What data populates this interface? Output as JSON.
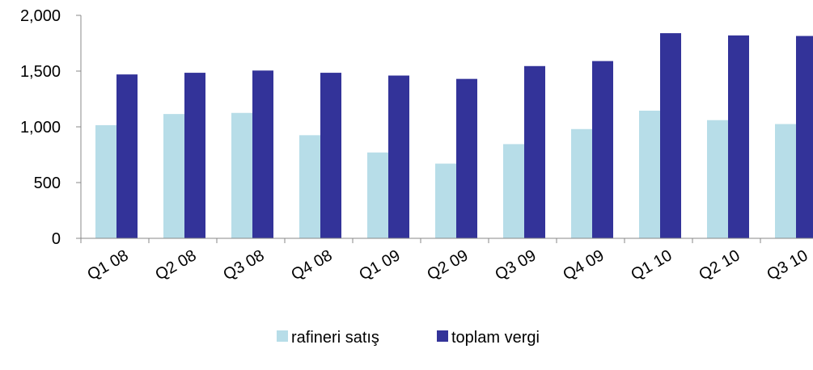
{
  "chart_data": {
    "type": "bar",
    "title": "",
    "xlabel": "",
    "ylabel": "",
    "categories": [
      "Q1 08",
      "Q2 08",
      "Q3 08",
      "Q4 08",
      "Q1 09",
      "Q2 09",
      "Q3 09",
      "Q4 09",
      "Q1 10",
      "Q2 10",
      "Q3 10"
    ],
    "ylim": [
      0,
      2000
    ],
    "yticks": [
      0,
      500,
      1000,
      1500,
      2000
    ],
    "ytick_labels": [
      "0",
      "500",
      "1,000",
      "1,500",
      "2,000"
    ],
    "grid": false,
    "legend_position": "bottom",
    "series": [
      {
        "name": "rafineri satış",
        "color": "#b7dde8",
        "values": [
          1015,
          1115,
          1125,
          925,
          770,
          670,
          845,
          980,
          1145,
          1060,
          1025
        ]
      },
      {
        "name": "toplam vergi",
        "color": "#333399",
        "values": [
          1470,
          1485,
          1505,
          1485,
          1460,
          1430,
          1545,
          1590,
          1840,
          1820,
          1815
        ]
      }
    ]
  }
}
